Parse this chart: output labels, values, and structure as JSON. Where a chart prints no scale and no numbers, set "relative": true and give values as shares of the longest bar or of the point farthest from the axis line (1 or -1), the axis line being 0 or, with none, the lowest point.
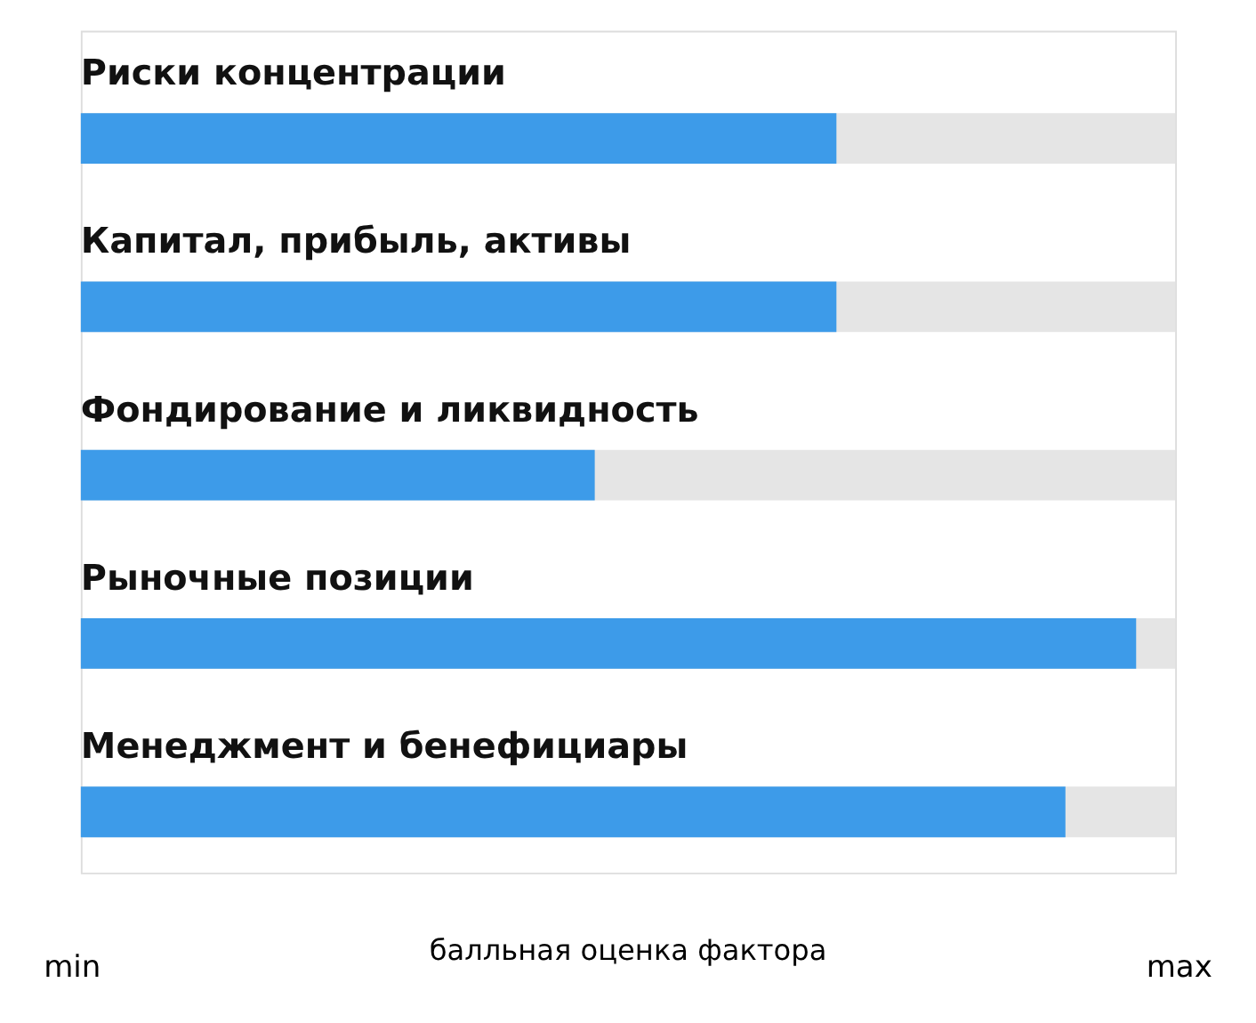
{
  "chart_data": {
    "type": "bar",
    "orientation": "horizontal",
    "relative": true,
    "categories": [
      "Риски концентрации",
      "Капитал, прибыль, активы",
      "Фондирование и ликвидность",
      "Рыночные позиции",
      "Менеджмент и бенефициары"
    ],
    "values": [
      0.716,
      0.716,
      0.487,
      1,
      0.933
    ],
    "color": "#3d9be9",
    "xlabel": "балльная оценка фактора",
    "annotations": [
      "min",
      "max"
    ]
  }
}
